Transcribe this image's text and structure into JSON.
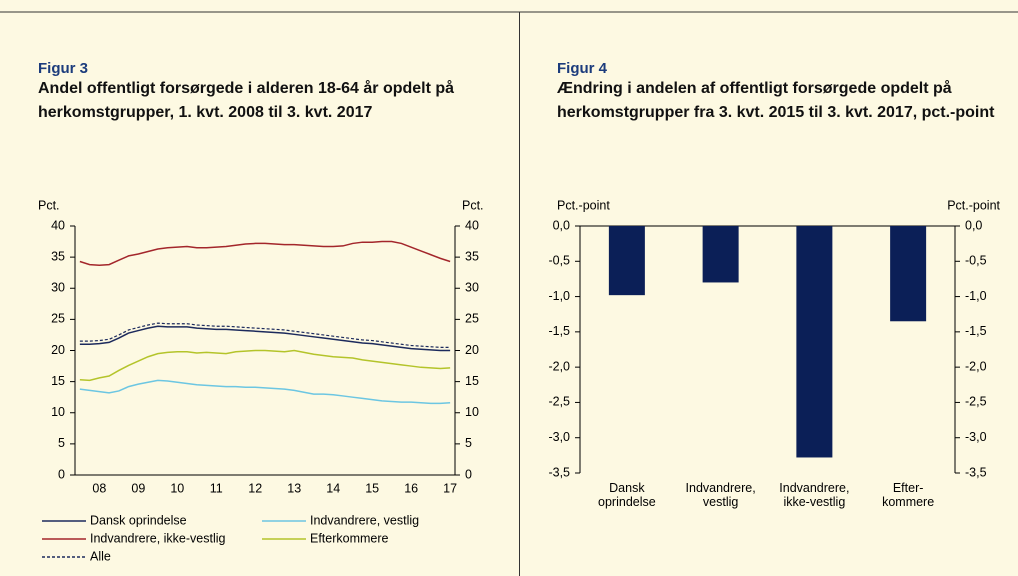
{
  "chart_data": [
    {
      "type": "line",
      "figure_label": "Figur 3",
      "title": "Andel offentligt forsørgede i alderen 18-64 år opdelt på herkomstgrupper, 1. kvt. 2008 til 3. kvt. 2017",
      "ylabel": "Pct.",
      "y2label": "Pct.",
      "categories": [
        null,
        null,
        "08",
        null,
        null,
        null,
        "09",
        null,
        null,
        null,
        "10",
        null,
        null,
        null,
        "11",
        null,
        null,
        null,
        "12",
        null,
        null,
        null,
        "13",
        null,
        null,
        null,
        "14",
        null,
        null,
        null,
        "15",
        null,
        null,
        null,
        "16",
        null,
        null,
        null,
        "17"
      ],
      "series": [
        {
          "name": "Dansk oprindelse",
          "color": "#1c2a5c",
          "values": [
            21.0,
            21.0,
            21.1,
            21.3,
            22.0,
            22.8,
            23.2,
            23.6,
            23.9,
            23.8,
            23.8,
            23.8,
            23.6,
            23.5,
            23.4,
            23.4,
            23.3,
            23.2,
            23.1,
            23.0,
            22.9,
            22.8,
            22.6,
            22.4,
            22.2,
            22.0,
            21.8,
            21.6,
            21.4,
            21.2,
            21.1,
            20.9,
            20.7,
            20.5,
            20.3,
            20.2,
            20.1,
            20.0,
            20.0
          ]
        },
        {
          "name": "Indvandrere, vestlig",
          "color": "#6cc6e2",
          "values": [
            13.8,
            13.6,
            13.4,
            13.2,
            13.5,
            14.2,
            14.6,
            14.9,
            15.2,
            15.1,
            14.9,
            14.7,
            14.5,
            14.4,
            14.3,
            14.2,
            14.2,
            14.1,
            14.1,
            14.0,
            13.9,
            13.8,
            13.6,
            13.3,
            13.0,
            13.0,
            12.9,
            12.7,
            12.5,
            12.3,
            12.1,
            11.9,
            11.8,
            11.7,
            11.7,
            11.6,
            11.5,
            11.5,
            11.6
          ]
        },
        {
          "name": "Indvandrere, ikke-vestlig",
          "color": "#a3262b",
          "values": [
            34.3,
            33.8,
            33.7,
            33.8,
            34.5,
            35.2,
            35.5,
            35.9,
            36.3,
            36.5,
            36.6,
            36.7,
            36.5,
            36.5,
            36.6,
            36.7,
            36.9,
            37.1,
            37.2,
            37.2,
            37.1,
            37.0,
            37.0,
            36.9,
            36.8,
            36.7,
            36.7,
            36.8,
            37.2,
            37.4,
            37.4,
            37.5,
            37.5,
            37.2,
            36.6,
            36.0,
            35.4,
            34.8,
            34.3
          ]
        },
        {
          "name": "Efterkommere",
          "color": "#b4c42a",
          "values": [
            15.3,
            15.2,
            15.6,
            15.9,
            16.8,
            17.6,
            18.3,
            19.0,
            19.5,
            19.7,
            19.8,
            19.8,
            19.6,
            19.7,
            19.6,
            19.5,
            19.8,
            19.9,
            20.0,
            20.0,
            19.9,
            19.8,
            20.0,
            19.7,
            19.4,
            19.2,
            19.0,
            18.9,
            18.8,
            18.5,
            18.3,
            18.1,
            17.9,
            17.7,
            17.5,
            17.3,
            17.2,
            17.1,
            17.2
          ]
        },
        {
          "name": "Alle",
          "color": "#1c2a5c",
          "line_style": "dashed",
          "values": [
            21.5,
            21.5,
            21.6,
            21.8,
            22.5,
            23.3,
            23.7,
            24.1,
            24.4,
            24.3,
            24.3,
            24.3,
            24.1,
            24.0,
            23.9,
            23.9,
            23.8,
            23.7,
            23.6,
            23.5,
            23.4,
            23.3,
            23.1,
            22.9,
            22.7,
            22.5,
            22.3,
            22.1,
            21.9,
            21.7,
            21.6,
            21.4,
            21.2,
            21.0,
            20.8,
            20.7,
            20.6,
            20.5,
            20.5
          ]
        }
      ],
      "ylim": [
        0,
        40
      ],
      "yticks": [
        0,
        5,
        10,
        15,
        20,
        25,
        30,
        35,
        40
      ],
      "y2lim": [
        0,
        40
      ],
      "y2ticks": [
        0,
        5,
        10,
        15,
        20,
        25,
        30,
        35,
        40
      ],
      "legend": "bottom"
    },
    {
      "type": "bar",
      "figure_label": "Figur 4",
      "title": "Ændring i andelen af offentligt forsørgede opdelt på herkomstgrupper fra 3. kvt. 2015 til 3. kvt. 2017, pct.-point",
      "ylabel": "Pct.-point",
      "y2label": "Pct.-point",
      "categories": [
        "Dansk\noprindelse",
        "Indvandrere,\nvestlig",
        "Indvandrere,\nikke-vestlig",
        "Efter-\nkommere"
      ],
      "values": [
        -0.98,
        -0.8,
        -3.28,
        -1.35
      ],
      "color": "#0b1f57",
      "ylim": [
        -3.5,
        0
      ],
      "yticks": [
        {
          "value": -3.5,
          "label": "-3,5"
        },
        {
          "value": -3,
          "label": "-3,0"
        },
        {
          "value": -2.5,
          "label": "-2,5"
        },
        {
          "value": -2,
          "label": "-2,0"
        },
        {
          "value": -1.5,
          "label": "-1,5"
        },
        {
          "value": -1,
          "label": "-1,0"
        },
        {
          "value": -0.5,
          "label": "-0,5"
        },
        {
          "value": 0,
          "label": "0,0"
        }
      ],
      "y2lim": [
        -3.5,
        0
      ],
      "y2ticks": [
        {
          "value": -3.5,
          "label": "-3,5"
        },
        {
          "value": -3,
          "label": "-3,0"
        },
        {
          "value": -2.5,
          "label": "-2,5"
        },
        {
          "value": -2,
          "label": "-2,0"
        },
        {
          "value": -1.5,
          "label": "-1,5"
        },
        {
          "value": -1,
          "label": "-1,0"
        },
        {
          "value": -0.5,
          "label": "-0,5"
        },
        {
          "value": 0,
          "label": "0,0"
        }
      ]
    }
  ]
}
